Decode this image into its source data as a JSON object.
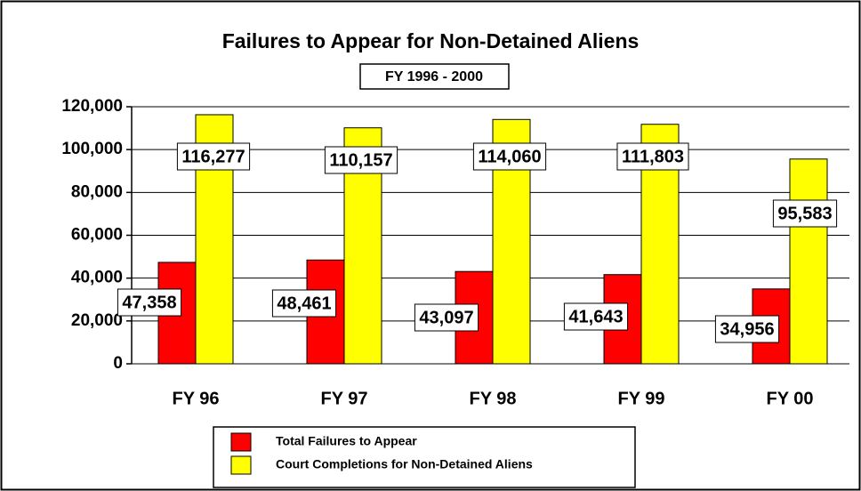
{
  "chart_data": {
    "type": "bar",
    "title": "Failures to Appear for Non-Detained Aliens",
    "subtitle": "FY 1996 - 2000",
    "categories": [
      "FY 96",
      "FY 97",
      "FY 98",
      "FY 99",
      "FY 00"
    ],
    "series": [
      {
        "name": "Total Failures to Appear",
        "color": "#ff0000",
        "values": [
          47358,
          48461,
          43097,
          41643,
          34956
        ],
        "value_labels": [
          "47,358",
          "48,461",
          "43,097",
          "41,643",
          "34,956"
        ]
      },
      {
        "name": "Court Completions for Non-Detained Aliens",
        "color": "#ffff00",
        "values": [
          116277,
          110157,
          114060,
          111803,
          95583
        ],
        "value_labels": [
          "116,277",
          "110,157",
          "114,060",
          "111,803",
          "95,583"
        ]
      }
    ],
    "ylim": [
      0,
      120000
    ],
    "yticks": [
      0,
      {
        "value": 20000,
        "label": "20,000"
      },
      {
        "value": 40000,
        "label": "40,000"
      },
      {
        "value": 60000,
        "label": "60,000"
      },
      {
        "value": 80000,
        "label": "80,000"
      },
      {
        "value": 100000,
        "label": "100,000"
      },
      {
        "value": 120000,
        "label": "120,000"
      }
    ],
    "grid": true
  }
}
